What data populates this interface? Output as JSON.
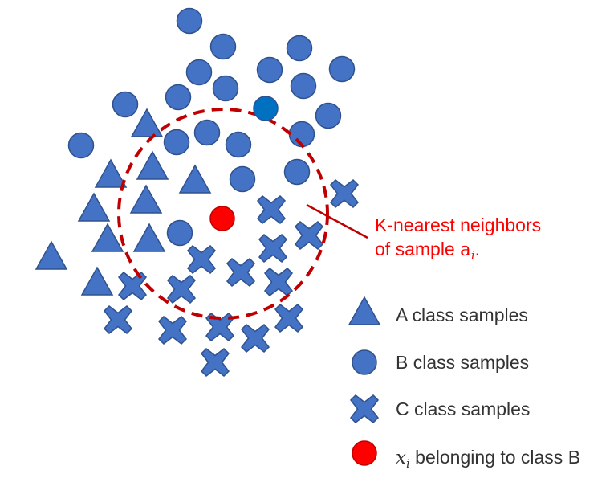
{
  "colors": {
    "marker_fill": "#4472C4",
    "marker_stroke": "#2F528F",
    "highlight_b_fill": "#0070C0",
    "query_fill": "#FF0000",
    "circle_stroke": "#C00000",
    "annotation_text": "#FF0000",
    "legend_text": "#333333"
  },
  "annotation": {
    "line1": "K-nearest neighbors",
    "line2_prefix": "of sample ",
    "line2_var": "a",
    "line2_sub": "i",
    "line2_suffix": "."
  },
  "legend": {
    "a_label": "A class samples",
    "b_label": "B class samples",
    "c_label": "C class samples",
    "x_var": "x",
    "x_sub": "i",
    "x_suffix": " belonging to class B"
  }
}
